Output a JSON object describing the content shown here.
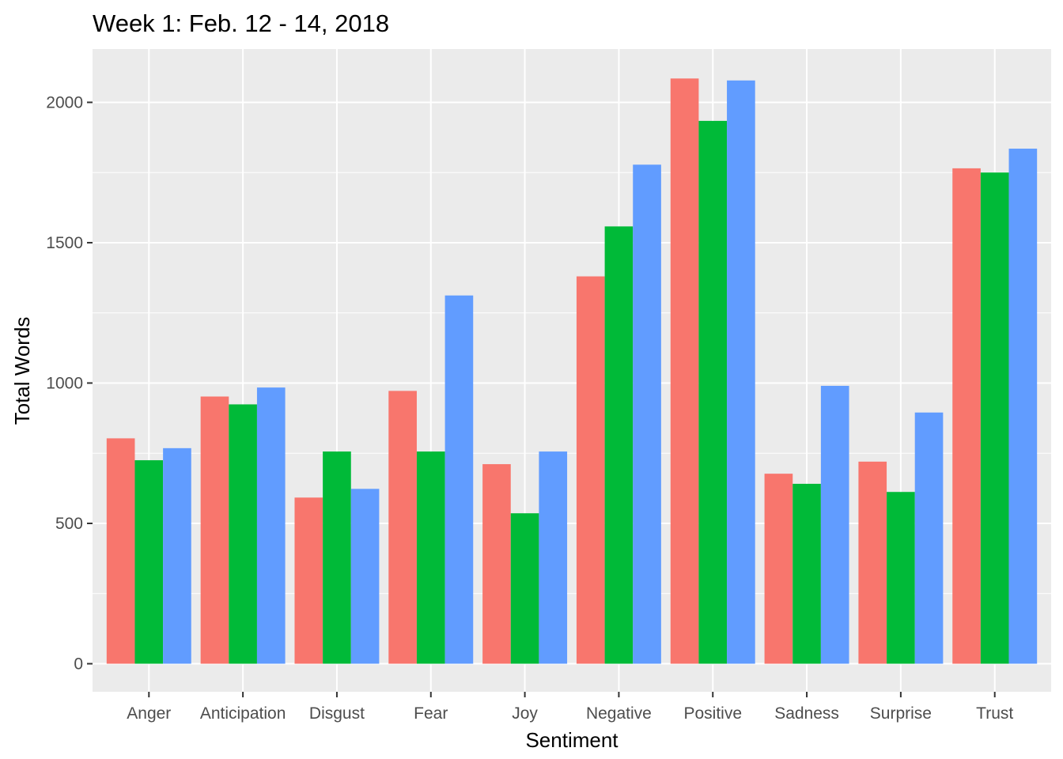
{
  "chart_data": {
    "type": "bar",
    "title": "Week 1: Feb. 12 - 14, 2018",
    "xlabel": "Sentiment",
    "ylabel": "Total Words",
    "categories": [
      "Anger",
      "Anticipation",
      "Disgust",
      "Fear",
      "Joy",
      "Negative",
      "Positive",
      "Sadness",
      "Surprise",
      "Trust"
    ],
    "series": [
      {
        "color": "#F8766D",
        "values": [
          803,
          952,
          592,
          972,
          711,
          1380,
          2085,
          677,
          720,
          1765
        ]
      },
      {
        "color": "#00BA38",
        "values": [
          725,
          924,
          756,
          756,
          536,
          1558,
          1934,
          641,
          612,
          1750
        ]
      },
      {
        "color": "#619CFF",
        "values": [
          768,
          984,
          623,
          1312,
          756,
          1778,
          2078,
          990,
          895,
          1835
        ]
      }
    ],
    "ylim": [
      -100,
      2190
    ],
    "yticks": [
      0,
      500,
      1000,
      1500,
      2000
    ],
    "grid": true,
    "panel_background": "#EBEBEB",
    "grid_color": "#FFFFFF"
  }
}
